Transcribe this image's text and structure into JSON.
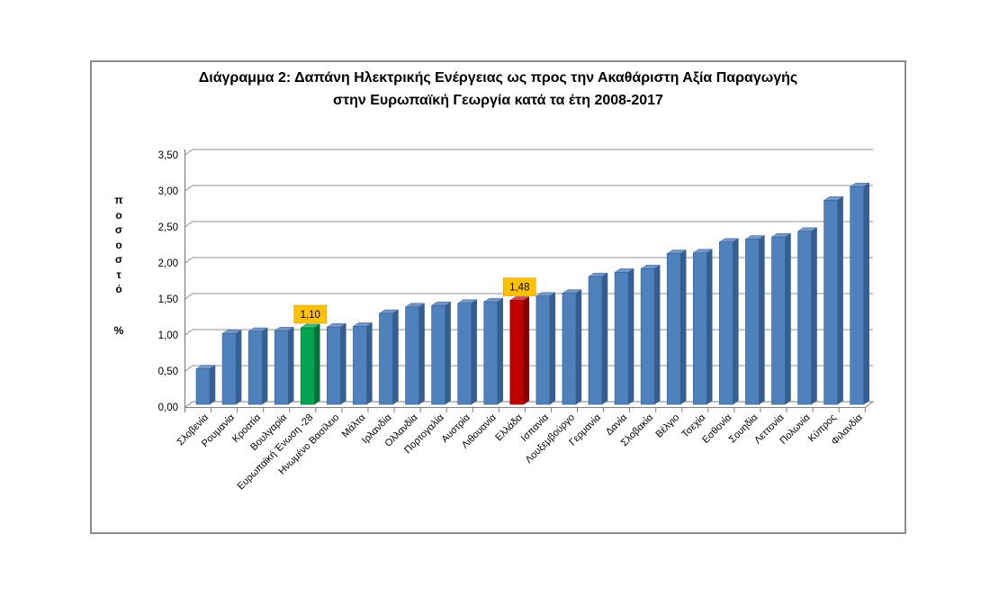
{
  "figure": {
    "title_line1": "Διάγραμμα 2: Δαπάνη Ηλεκτρικής Ενέργειας ως προς την Ακαθάριστη Αξία Παραγωγής",
    "title_line2": "στην Ευρωπαϊκή Γεωργία κατά τα έτη 2008-2017"
  },
  "y_axis": {
    "label_vertical": "ποσοστό",
    "unit": "%",
    "ticks": [
      "3,50",
      "3,00",
      "2,50",
      "2,00",
      "1,50",
      "1,00",
      "0,50",
      "0,00"
    ]
  },
  "chart_data": {
    "type": "bar",
    "title": "Διάγραμμα 2: Δαπάνη Ηλεκτρικής Ενέργειας ως προς την Ακαθάριστη Αξία Παραγωγής στην Ευρωπαϊκή Γεωργία κατά τα έτη 2008-2017",
    "xlabel": "",
    "ylabel": "ποσοστό %",
    "ylim": [
      0,
      3.5
    ],
    "ytick_step": 0.5,
    "grid": true,
    "legend": false,
    "style": "3d-column",
    "categories": [
      "Σλοβενία",
      "Ρουμανία",
      "Κροατία",
      "Βουλγαρία",
      "Ευρωπαϊκή Ένωση -28",
      "Ηνωμένο Βασίλειο",
      "Μάλτα",
      "Ιρλανδία",
      "Ολλανδία",
      "Πορτογαλία",
      "Αυστρία",
      "Λιθουανία",
      "Ελλάδα",
      "Ισπανία",
      "Λουξεμβούργο",
      "Γερμανία",
      "Δανία",
      "Σλοβακία",
      "Βέλγιο",
      "Τσεχία",
      "Εσθονία",
      "Σουηδία",
      "Λεττονία",
      "Πολωνία",
      "Κύπρος",
      "Φιλανδία"
    ],
    "values": [
      0.53,
      1.02,
      1.05,
      1.06,
      1.1,
      1.11,
      1.12,
      1.3,
      1.39,
      1.41,
      1.44,
      1.46,
      1.48,
      1.54,
      1.58,
      1.81,
      1.87,
      1.92,
      2.13,
      2.14,
      2.29,
      2.33,
      2.36,
      2.44,
      2.87,
      3.06
    ],
    "highlighted_bars": [
      {
        "index": 4,
        "category": "Ευρωπαϊκή Ένωση -28",
        "value_label": "1,10",
        "color_key": "green"
      },
      {
        "index": 12,
        "category": "Ελλάδα",
        "value_label": "1,48",
        "color_key": "red"
      }
    ]
  },
  "colors": {
    "blue": {
      "face": "#4F81BD",
      "side": "#365F91",
      "top": "#7396C8"
    },
    "green": {
      "face": "#00A550",
      "side": "#00713A",
      "top": "#3DBE78"
    },
    "red": {
      "face": "#C00000",
      "side": "#860000",
      "top": "#D44A4A"
    },
    "data_label_bg": "#FFC000",
    "data_label_text": "#000000",
    "gridline": "#A6A6A6",
    "axis": "#808080",
    "figure_border": "#8C8C8C"
  }
}
